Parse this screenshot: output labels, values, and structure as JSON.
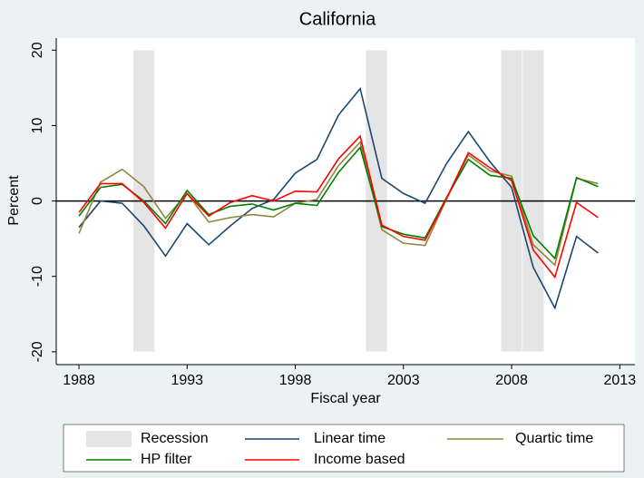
{
  "chart_data": {
    "type": "line",
    "title": "California",
    "xlabel": "Fiscal year",
    "ylabel": "Percent",
    "x": [
      1988,
      1989,
      1990,
      1991,
      1992,
      1993,
      1994,
      1995,
      1996,
      1997,
      1998,
      1999,
      2000,
      2001,
      2002,
      2003,
      2004,
      2005,
      2006,
      2007,
      2008,
      2009,
      2010,
      2011,
      2012
    ],
    "series": [
      {
        "name": "Linear time",
        "color": "#1a476f",
        "values": [
          -3.5,
          0,
          -0.3,
          -3.3,
          -7.3,
          -3,
          -5.8,
          -3.3,
          -1,
          0.2,
          3.7,
          5.5,
          11.4,
          14.9,
          3,
          1,
          -0.3,
          5,
          9.2,
          5.2,
          1.8,
          -8.8,
          -14.2,
          -4.7,
          -6.9
        ]
      },
      {
        "name": "Quartic time",
        "color": "#90853c",
        "values": [
          -4.3,
          2.5,
          4.2,
          1.9,
          -2.3,
          1,
          -2.8,
          -2.2,
          -1.8,
          -2.1,
          -0.3,
          0.2,
          4.7,
          7.8,
          -3.8,
          -5.6,
          -5.9,
          0.3,
          6.1,
          4,
          3.3,
          -5.8,
          -8.5,
          3,
          2.3
        ]
      },
      {
        "name": "HP filter",
        "color": "#008000",
        "values": [
          -2,
          1.8,
          2.2,
          0,
          -3,
          1.4,
          -1.8,
          -0.7,
          -0.4,
          -1.2,
          -0.3,
          -0.6,
          3.8,
          7.1,
          -3.4,
          -4.4,
          -4.9,
          0.5,
          5.5,
          3.4,
          3,
          -4.6,
          -7.6,
          3.1,
          1.9
        ]
      },
      {
        "name": "Income based",
        "color": "#ff0000",
        "values": [
          -1.5,
          2.3,
          2.3,
          -0.2,
          -3.6,
          1,
          -2,
          -0.2,
          0.7,
          0,
          1.3,
          1.2,
          5.6,
          8.6,
          -3.2,
          -4.7,
          -5.2,
          0.4,
          6.4,
          4.4,
          2.7,
          -6.5,
          -10.1,
          -0.2,
          -2.2
        ]
      }
    ],
    "recession": {
      "name": "Recession",
      "color": "#e5e5e5",
      "range": [
        -20,
        20
      ],
      "periods": [
        [
          1990.5,
          1991.5
        ],
        [
          2001.25,
          2002.25
        ],
        [
          2007.5,
          2008.5
        ],
        [
          2008.5,
          2009.5
        ]
      ]
    },
    "yline": 0,
    "xlim": [
      1986.95,
      2013.7
    ],
    "ylim": [
      -21.7,
      21.6
    ],
    "xticks": [
      1988,
      1993,
      1998,
      2003,
      2008,
      2013
    ],
    "yticks": [
      -20,
      -10,
      0,
      10,
      20
    ]
  }
}
